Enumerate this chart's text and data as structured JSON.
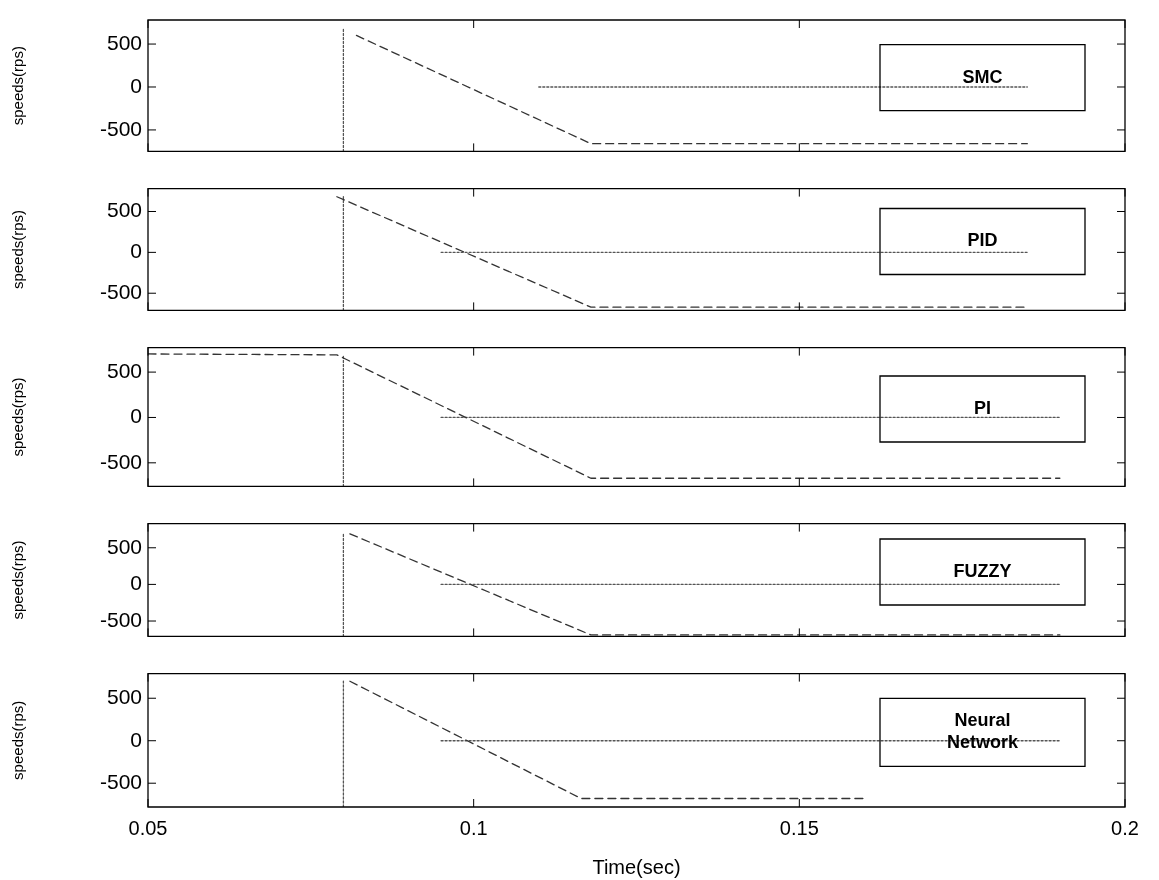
{
  "chart_data": [
    {
      "type": "line",
      "ylabel": "speeds(rps)",
      "xlim": [
        0.05,
        0.2
      ],
      "xticks": [
        0.05,
        0.1,
        0.15,
        0.2
      ],
      "ylim": [
        -750,
        780
      ],
      "yticks": [
        -500,
        0,
        500
      ],
      "tick_labels": "y",
      "legend": "right",
      "series": [
        {
          "name": "SMC",
          "color": "#333333",
          "line_style": "dashed",
          "x": [
            0.082,
            0.118,
            0.185
          ],
          "values": [
            600,
            -660,
            -660
          ]
        },
        {
          "color": "#555555",
          "line_style": "dotted",
          "x": [
            0.08,
            0.08
          ],
          "values": [
            -750,
            690
          ]
        },
        {
          "color": "#555555",
          "line_style": "dotted",
          "x": [
            0.11,
            0.185
          ],
          "values": [
            0,
            0
          ]
        }
      ]
    },
    {
      "type": "line",
      "ylabel": "speeds(rps)",
      "xlim": [
        0.05,
        0.2
      ],
      "xticks": [
        0.05,
        0.1,
        0.15,
        0.2
      ],
      "ylim": [
        -710,
        780
      ],
      "yticks": [
        -500,
        0,
        500
      ],
      "tick_labels": "y",
      "legend": "right",
      "series": [
        {
          "name": "PID",
          "color": "#333333",
          "line_style": "dashed",
          "x": [
            0.079,
            0.118,
            0.185
          ],
          "values": [
            680,
            -670,
            -670
          ]
        },
        {
          "color": "#555555",
          "line_style": "dotted",
          "x": [
            0.08,
            0.08
          ],
          "values": [
            -710,
            680
          ]
        },
        {
          "color": "#555555",
          "line_style": "dotted",
          "x": [
            0.095,
            0.185
          ],
          "values": [
            0,
            0
          ]
        }
      ]
    },
    {
      "type": "line",
      "ylabel": "speeds(rps)",
      "xlim": [
        0.05,
        0.2
      ],
      "xticks": [
        0.05,
        0.1,
        0.15,
        0.2
      ],
      "ylim": [
        -760,
        770
      ],
      "yticks": [
        -500,
        0,
        500
      ],
      "tick_labels": "y",
      "legend": "right",
      "series": [
        {
          "name": "PI",
          "color": "#333333",
          "line_style": "dashed",
          "x": [
            0.05,
            0.079,
            0.118,
            0.19
          ],
          "values": [
            700,
            690,
            -670,
            -670
          ]
        },
        {
          "color": "#555555",
          "line_style": "dotted",
          "x": [
            0.08,
            0.08
          ],
          "values": [
            -760,
            690
          ]
        },
        {
          "color": "#555555",
          "line_style": "dotted",
          "x": [
            0.095,
            0.19
          ],
          "values": [
            0,
            0
          ]
        }
      ]
    },
    {
      "type": "line",
      "ylabel": "speeds(rps)",
      "xlim": [
        0.05,
        0.2
      ],
      "xticks": [
        0.05,
        0.1,
        0.15,
        0.2
      ],
      "ylim": [
        -710,
        830
      ],
      "yticks": [
        -500,
        0,
        500
      ],
      "tick_labels": "y",
      "legend": "right",
      "series": [
        {
          "name": "FUZZY",
          "color": "#333333",
          "line_style": "dashed",
          "x": [
            0.081,
            0.118,
            0.19
          ],
          "values": [
            690,
            -690,
            -690
          ]
        },
        {
          "color": "#555555",
          "line_style": "dotted",
          "x": [
            0.08,
            0.08
          ],
          "values": [
            -710,
            690
          ]
        },
        {
          "color": "#555555",
          "line_style": "dotted",
          "x": [
            0.095,
            0.19
          ],
          "values": [
            0,
            0
          ]
        }
      ]
    },
    {
      "type": "line",
      "ylabel": "speeds(rps)",
      "xlabel": "Time(sec)",
      "xlim": [
        0.05,
        0.2
      ],
      "xticks": [
        0.05,
        0.1,
        0.15,
        0.2
      ],
      "ylim": [
        -780,
        790
      ],
      "yticks": [
        -500,
        0,
        500
      ],
      "legend": "right",
      "series": [
        {
          "name": "Neural Network",
          "color": "#333333",
          "line_style": "dashed",
          "x": [
            0.081,
            0.1165,
            0.16
          ],
          "values": [
            700,
            -680,
            -680
          ]
        },
        {
          "color": "#555555",
          "line_style": "dotted",
          "x": [
            0.08,
            0.08
          ],
          "values": [
            -780,
            700
          ]
        },
        {
          "color": "#555555",
          "line_style": "dotted",
          "x": [
            0.095,
            0.19
          ],
          "values": [
            0,
            0
          ]
        }
      ]
    }
  ]
}
